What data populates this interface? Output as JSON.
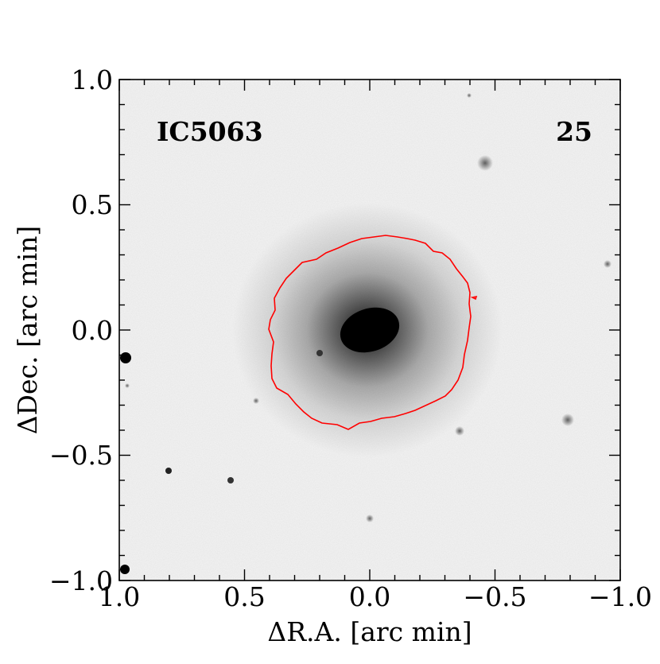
{
  "image": {
    "object_label": "IC5063",
    "panel_number": "25",
    "contour_color": "#ff0000"
  },
  "axes": {
    "xlabel": "ΔR.A. [arc min]",
    "ylabel": "ΔDec. [arc min]",
    "xlim": [
      1.0,
      -1.0
    ],
    "ylim": [
      -1.0,
      1.0
    ],
    "xticks": [
      "1.0",
      "0.5",
      "0.0",
      "−0.5",
      "−1.0"
    ],
    "yticks": [
      "1.0",
      "0.5",
      "0.0",
      "−0.5",
      "−1.0"
    ]
  }
}
